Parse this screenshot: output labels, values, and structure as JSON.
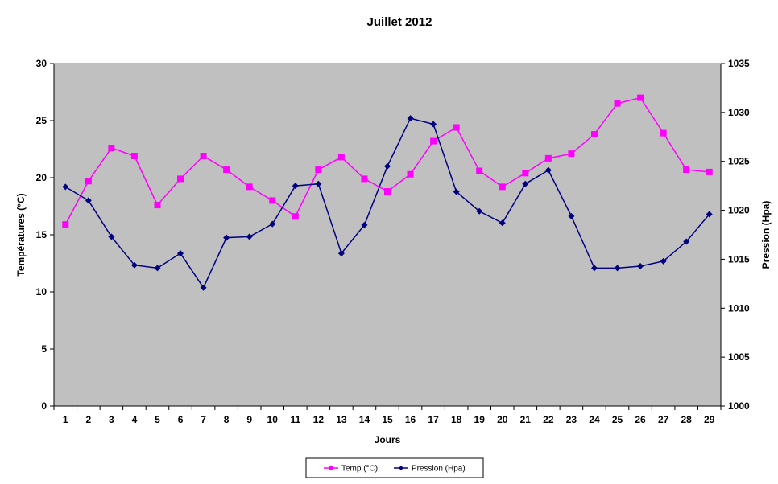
{
  "chart_data": {
    "type": "line",
    "title": "Juillet 2012",
    "xlabel": "Jours",
    "ylabel_left": "Températures (°C)",
    "ylabel_right": "Pression (Hpa)",
    "x": [
      1,
      2,
      3,
      4,
      5,
      6,
      7,
      8,
      9,
      10,
      11,
      12,
      13,
      14,
      15,
      16,
      17,
      18,
      19,
      20,
      21,
      22,
      23,
      24,
      25,
      26,
      27,
      28,
      29
    ],
    "y_left_lim": [
      0,
      30
    ],
    "y_left_ticks": [
      0,
      5,
      10,
      15,
      20,
      25,
      30
    ],
    "y_right_lim": [
      1000,
      1035
    ],
    "y_right_ticks": [
      1000,
      1005,
      1010,
      1015,
      1020,
      1025,
      1030,
      1035
    ],
    "grid": false,
    "plot_background": "#c0c0c0",
    "legend_position": "bottom",
    "series": [
      {
        "name": "Temp (°C)",
        "axis": "left",
        "color": "#ff00ff",
        "marker": "square",
        "values": [
          15.9,
          19.7,
          22.6,
          21.9,
          17.6,
          19.9,
          21.9,
          20.7,
          19.2,
          18.0,
          16.6,
          20.7,
          21.8,
          19.9,
          18.8,
          20.3,
          23.2,
          24.4,
          20.6,
          19.2,
          20.4,
          21.7,
          22.1,
          23.8,
          26.5,
          27.0,
          23.9,
          20.7,
          20.5
        ]
      },
      {
        "name": "Pression (Hpa)",
        "axis": "right",
        "color": "#000080",
        "marker": "diamond",
        "values": [
          1022.4,
          1021.0,
          1017.3,
          1014.4,
          1014.1,
          1015.6,
          1012.1,
          1017.2,
          1017.3,
          1018.6,
          1022.5,
          1022.7,
          1015.6,
          1018.5,
          1024.5,
          1029.4,
          1028.8,
          1021.9,
          1019.9,
          1018.7,
          1022.7,
          1024.1,
          1019.4,
          1014.1,
          1014.1,
          1014.3,
          1014.8,
          1016.8,
          1019.6
        ]
      }
    ]
  }
}
